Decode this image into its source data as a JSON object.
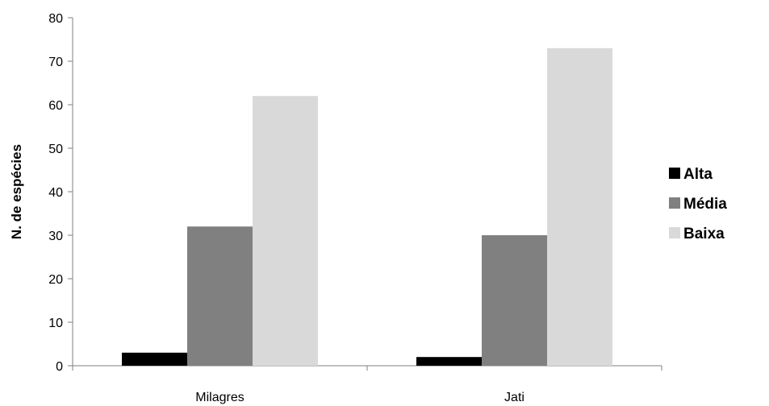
{
  "chart_data": {
    "type": "bar",
    "title": "",
    "xlabel": "",
    "ylabel": "N. de espécies",
    "ylim": [
      0,
      80
    ],
    "yticks": [
      0,
      10,
      20,
      30,
      40,
      50,
      60,
      70,
      80
    ],
    "categories": [
      "Milagres",
      "Jati"
    ],
    "series": [
      {
        "name": "Alta",
        "values": [
          3,
          2
        ],
        "color": "#000000"
      },
      {
        "name": "Média",
        "values": [
          32,
          30
        ],
        "color": "#808080"
      },
      {
        "name": "Baixa",
        "values": [
          62,
          73
        ],
        "color": "#d9d9d9"
      }
    ],
    "grid": false,
    "legend": "right"
  }
}
